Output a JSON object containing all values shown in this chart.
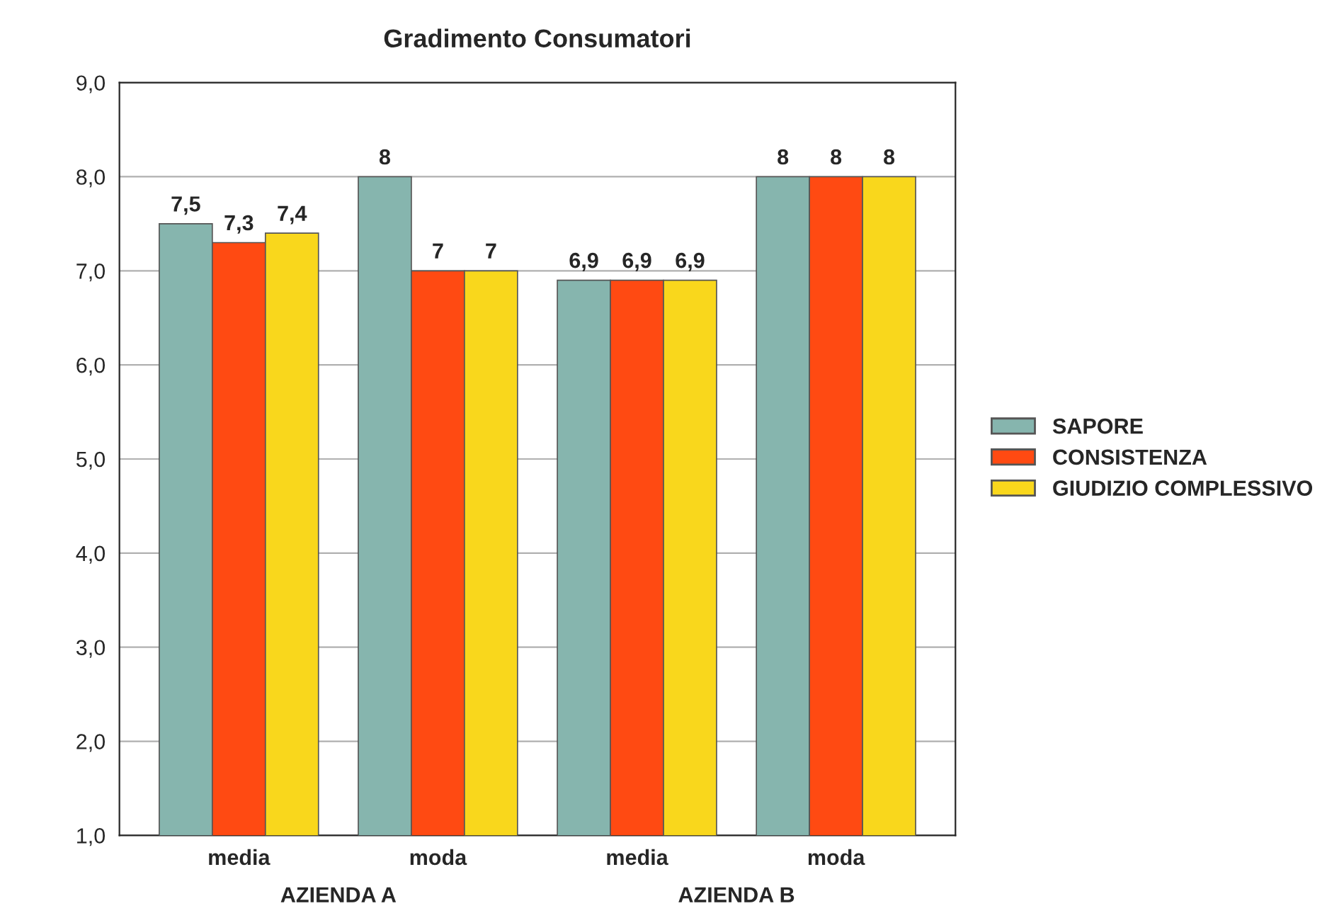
{
  "chart_data": {
    "type": "bar",
    "title": "Gradimento Consumatori",
    "categories": [
      "media",
      "moda",
      "media",
      "moda"
    ],
    "series": [
      {
        "name": "SAPORE",
        "color": "#86b5ae",
        "values": [
          7.5,
          8,
          6.9,
          8
        ],
        "value_labels": [
          "7,5",
          "8",
          "6,9",
          "8"
        ]
      },
      {
        "name": "CONSISTENZA",
        "color": "#ff4a12",
        "values": [
          7.3,
          7,
          6.9,
          8
        ],
        "value_labels": [
          "7,3",
          "7",
          "6,9",
          "8"
        ]
      },
      {
        "name": "GIUDIZIO COMPLESSIVO",
        "color": "#f9d71c",
        "values": [
          7.4,
          7,
          6.9,
          8
        ],
        "value_labels": [
          "7,4",
          "7",
          "6,9",
          "8"
        ]
      }
    ],
    "ylim": [
      1,
      9
    ],
    "yticks": [
      {
        "value": 1,
        "label": "1,0"
      },
      {
        "value": 2,
        "label": "2,0"
      },
      {
        "value": 3,
        "label": "3,0"
      },
      {
        "value": 4,
        "label": "4,0"
      },
      {
        "value": 5,
        "label": "5,0"
      },
      {
        "value": 6,
        "label": "6,0"
      },
      {
        "value": 7,
        "label": "7,0"
      },
      {
        "value": 8,
        "label": "8,0"
      },
      {
        "value": 9,
        "label": "9,0"
      }
    ],
    "annotations": [
      "AZIENDA A",
      "AZIENDA B"
    ],
    "grid": "y",
    "legend": "right"
  }
}
